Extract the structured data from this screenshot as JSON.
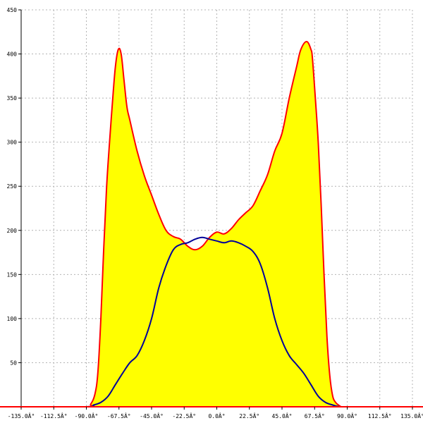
{
  "chart_data": {
    "type": "area",
    "title": "",
    "xlabel": "",
    "ylabel": "",
    "xlim": [
      -135,
      135
    ],
    "ylim": [
      0,
      450
    ],
    "grid": true,
    "x_ticks": [
      -135,
      -112.5,
      -90,
      -67.5,
      -45,
      -22.5,
      0,
      22.5,
      45,
      67.5,
      90,
      112.5,
      135
    ],
    "x_tick_labels": [
      "-135.0Â°",
      "-112.5Â°",
      "-90.0Â°",
      "-67.5Â°",
      "-45.0Â°",
      "-22.5Â°",
      "0.0Â°",
      "22.5Â°",
      "45.0Â°",
      "67.5Â°",
      "90.0Â°",
      "112.5Â°",
      "135.0Â°"
    ],
    "y_ticks": [
      50,
      100,
      150,
      200,
      250,
      300,
      350,
      400,
      450
    ],
    "y_tick_labels": [
      "50",
      "100",
      "150",
      "200",
      "250",
      "300",
      "350",
      "400",
      "450"
    ],
    "series": [
      {
        "color": "#ff0000",
        "fill": "#ffff00",
        "x": [
          -135,
          -90,
          -87,
          -84,
          -82,
          -80,
          -78,
          -76,
          -74,
          -72,
          -70,
          -68,
          -66,
          -64,
          -62,
          -60,
          -55,
          -50,
          -45,
          -40,
          -35,
          -30,
          -25,
          -20,
          -15,
          -10,
          -5,
          0,
          5,
          10,
          15,
          20,
          25,
          30,
          35,
          40,
          45,
          50,
          55,
          58,
          62,
          65,
          66,
          68,
          70,
          72,
          74,
          76,
          78,
          80,
          82,
          84,
          86,
          88,
          90,
          135
        ],
        "y": [
          0,
          0,
          3,
          15,
          40,
          100,
          180,
          250,
          300,
          345,
          385,
          405,
          400,
          370,
          340,
          325,
          290,
          262,
          240,
          218,
          200,
          193,
          190,
          182,
          178,
          182,
          192,
          198,
          196,
          202,
          212,
          220,
          228,
          245,
          263,
          290,
          310,
          350,
          385,
          405,
          414,
          405,
          395,
          350,
          300,
          230,
          150,
          80,
          35,
          12,
          5,
          2,
          0,
          0,
          0,
          0
        ]
      },
      {
        "color": "#000099",
        "x": [
          -135,
          -90,
          -85,
          -80,
          -75,
          -70,
          -65,
          -60,
          -55,
          -50,
          -45,
          -40,
          -35,
          -30,
          -25,
          -20,
          -15,
          -10,
          -5,
          0,
          5,
          10,
          15,
          20,
          25,
          30,
          35,
          40,
          45,
          50,
          55,
          60,
          65,
          70,
          75,
          80,
          85,
          90,
          135
        ],
        "y": [
          0,
          0,
          2,
          5,
          12,
          25,
          38,
          50,
          58,
          75,
          100,
          135,
          160,
          178,
          184,
          186,
          190,
          192,
          190,
          188,
          186,
          188,
          186,
          182,
          176,
          162,
          135,
          100,
          75,
          58,
          48,
          38,
          25,
          12,
          5,
          2,
          0,
          0,
          0
        ]
      }
    ]
  }
}
